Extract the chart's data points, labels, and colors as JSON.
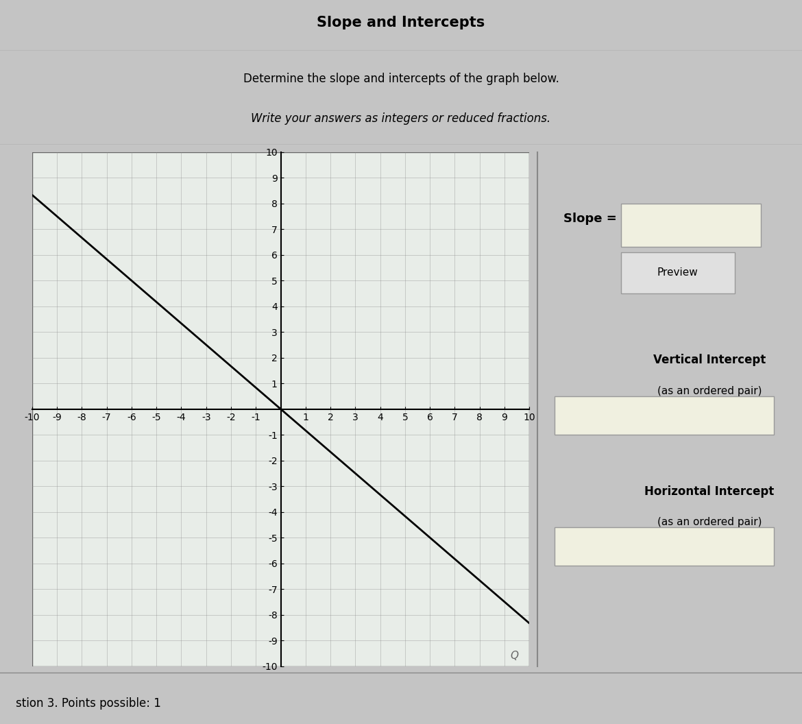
{
  "title": "Slope and Intercepts",
  "subtitle_line1": "Determine the slope and intercepts of the graph below.",
  "subtitle_line2": "Write your answers as integers or reduced fractions.",
  "line_x": [
    -10,
    10
  ],
  "line_y": [
    8.333,
    -8.333
  ],
  "slope_label": "Slope =",
  "preview_label": "Preview",
  "vertical_intercept_label": "Vertical Intercept",
  "vertical_intercept_sub": "(as an ordered pair)",
  "horizontal_intercept_label": "Horizontal Intercept",
  "horizontal_intercept_sub": "(as an ordered pair)",
  "footer_text": "stion 3. Points possible: 1",
  "xlim": [
    -10,
    10
  ],
  "ylim": [
    -10,
    10
  ],
  "axis_color": "#000000",
  "line_color": "#000000",
  "grid_color_major": "#888888",
  "bg_color_page": "#c4c4c4",
  "bg_color_graph": "#e8ede8",
  "bg_color_right_panel": "#c4c4c4",
  "input_box_color": "#f0f0e0",
  "title_fontsize": 15,
  "subtitle_fontsize": 12,
  "tick_fontsize": 9
}
